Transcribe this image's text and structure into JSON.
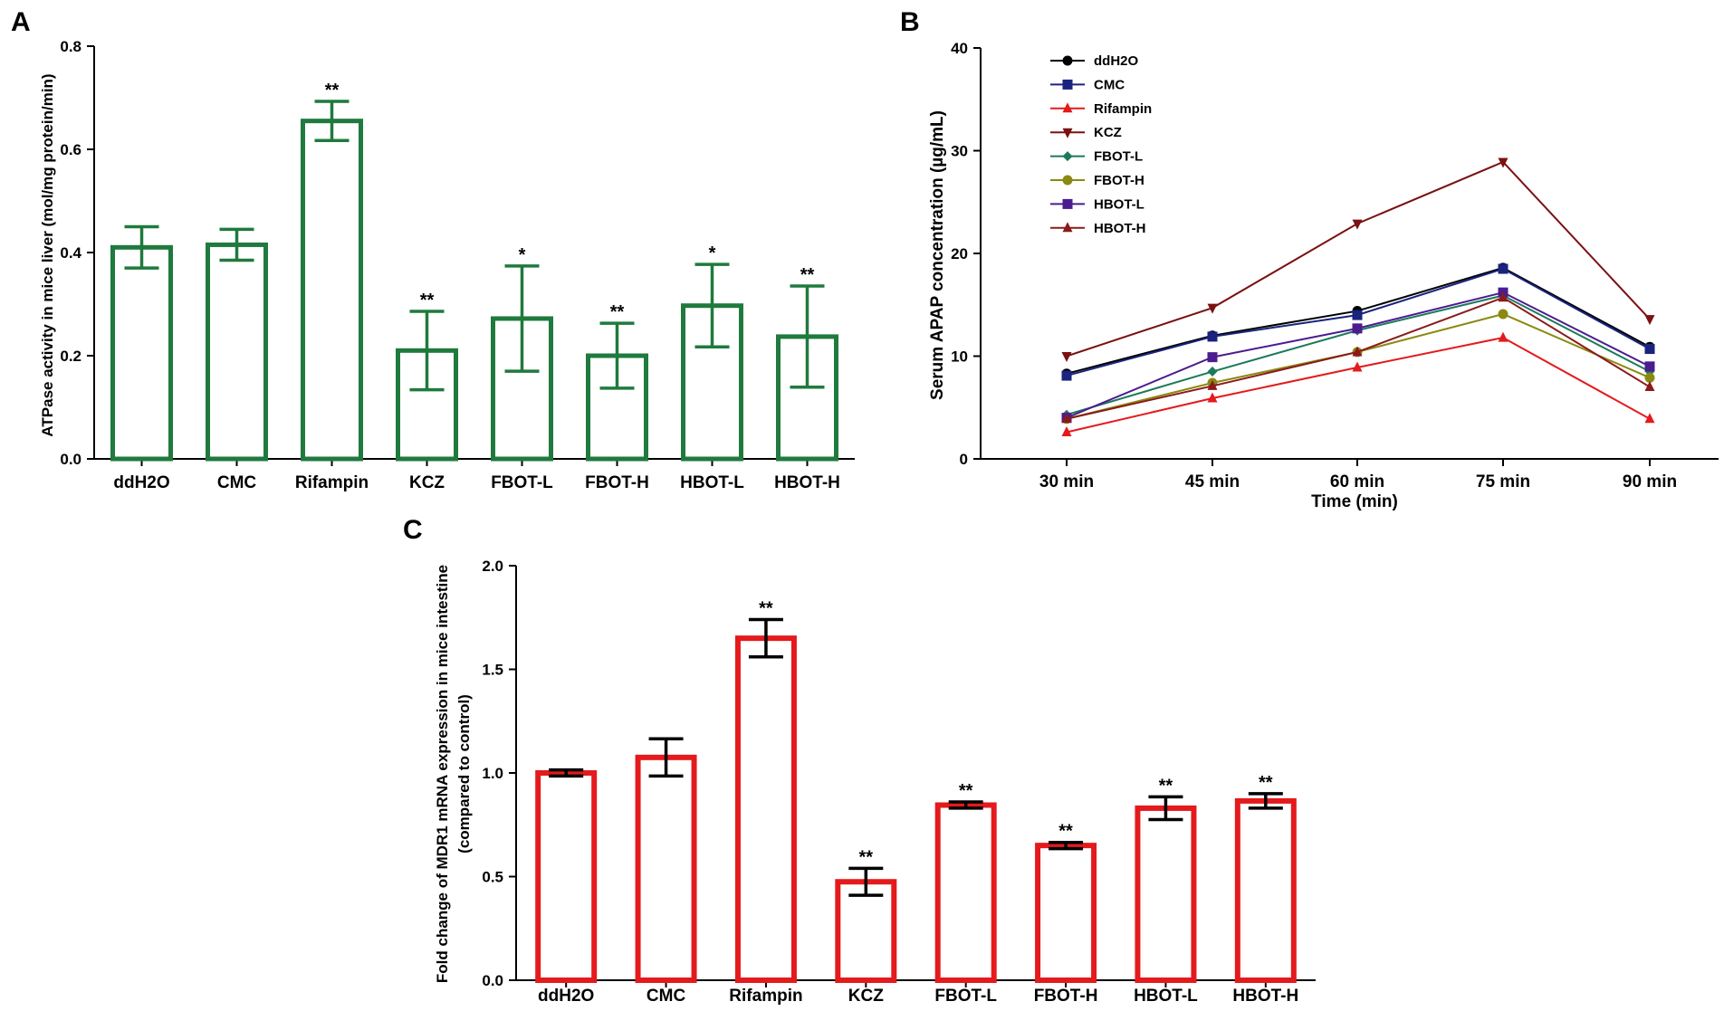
{
  "chart_data": [
    {
      "panel": "A",
      "type": "bar",
      "ylabel": "ATPase activity in mice liver (mol/mg protein/min)",
      "xlabel": "",
      "ylim": [
        0,
        0.8
      ],
      "yticks": [
        0.0,
        0.2,
        0.4,
        0.6,
        0.8
      ],
      "ytick_labels": [
        "0.0",
        "0.2",
        "0.4",
        "0.6",
        "0.8"
      ],
      "categories": [
        "ddH2O",
        "CMC",
        "Rifampin",
        "KCZ",
        "FBOT-L",
        "FBOT-H",
        "HBOT-L",
        "HBOT-H"
      ],
      "values": [
        0.41,
        0.415,
        0.655,
        0.21,
        0.272,
        0.2,
        0.297,
        0.237
      ],
      "errors": [
        0.04,
        0.03,
        0.038,
        0.076,
        0.102,
        0.063,
        0.08,
        0.098
      ],
      "significance": [
        "",
        "",
        "**",
        "**",
        "*",
        "**",
        "*",
        "**"
      ],
      "bar_color": "#1f7a3d",
      "error_color": "#1f7a3d"
    },
    {
      "panel": "B",
      "type": "line",
      "xlabel": "Time (min)",
      "ylabel": "Serum APAP concentration (µg/mL)",
      "x": [
        "30 min",
        "45 min",
        "60 min",
        "75 min",
        "90 min"
      ],
      "ylim": [
        0,
        40
      ],
      "yticks": [
        0,
        10,
        20,
        30,
        40
      ],
      "ytick_labels": [
        "0",
        "10",
        "20",
        "30",
        "40"
      ],
      "series": [
        {
          "name": "ddH2O",
          "values": [
            8.3,
            12.0,
            14.4,
            18.6,
            10.9
          ],
          "color": "#000000",
          "marker": "circle"
        },
        {
          "name": "CMC",
          "values": [
            8.1,
            11.9,
            14.0,
            18.5,
            10.7
          ],
          "color": "#1a237e",
          "marker": "square"
        },
        {
          "name": "Rifampin",
          "values": [
            2.6,
            5.9,
            8.9,
            11.8,
            3.9
          ],
          "color": "#e41a1c",
          "marker": "triangle-up"
        },
        {
          "name": "KCZ",
          "values": [
            10.0,
            14.7,
            22.9,
            28.9,
            13.6
          ],
          "color": "#7b1111",
          "marker": "triangle-down"
        },
        {
          "name": "FBOT-L",
          "values": [
            4.3,
            8.5,
            12.5,
            15.9,
            8.5
          ],
          "color": "#1b7a5a",
          "marker": "diamond"
        },
        {
          "name": "FBOT-H",
          "values": [
            3.9,
            7.4,
            10.4,
            14.1,
            7.9
          ],
          "color": "#8a8a12",
          "marker": "circle"
        },
        {
          "name": "HBOT-L",
          "values": [
            4.0,
            9.9,
            12.7,
            16.2,
            9.0
          ],
          "color": "#4b1c8f",
          "marker": "square"
        },
        {
          "name": "HBOT-H",
          "values": [
            3.9,
            7.1,
            10.4,
            15.7,
            7.0
          ],
          "color": "#8b1a1a",
          "marker": "triangle-up"
        }
      ],
      "legend_position": "top-left"
    },
    {
      "panel": "C",
      "type": "bar",
      "ylabel": "Fold change of MDR1 mRNA expression in mice intestine",
      "ylabel2": "(compared to control)",
      "xlabel": "",
      "ylim": [
        0,
        2.0
      ],
      "yticks": [
        0.0,
        0.5,
        1.0,
        1.5,
        2.0
      ],
      "ytick_labels": [
        "0.0",
        "0.5",
        "1.0",
        "1.5",
        "2.0"
      ],
      "categories": [
        "ddH2O",
        "CMC",
        "Rifampin",
        "KCZ",
        "FBOT-L",
        "FBOT-H",
        "HBOT-L",
        "HBOT-H"
      ],
      "values": [
        1.0,
        1.075,
        1.65,
        0.475,
        0.845,
        0.65,
        0.83,
        0.865
      ],
      "errors": [
        0.015,
        0.09,
        0.09,
        0.065,
        0.015,
        0.015,
        0.055,
        0.035
      ],
      "significance": [
        "",
        "",
        "**",
        "**",
        "**",
        "**",
        "**",
        "**"
      ],
      "bar_color": "#e41a1c",
      "error_color": "#000000"
    }
  ]
}
